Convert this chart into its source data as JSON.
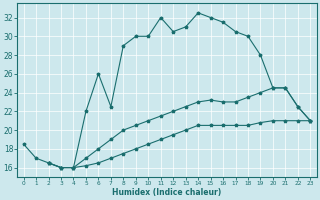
{
  "xlabel": "Humidex (Indice chaleur)",
  "bg_color": "#cde8ed",
  "grid_color": "#ffffff",
  "line_color": "#1a6e6e",
  "xlim": [
    -0.5,
    23.5
  ],
  "ylim": [
    15.0,
    33.5
  ],
  "yticks": [
    16,
    18,
    20,
    22,
    24,
    26,
    28,
    30,
    32
  ],
  "xticks": [
    0,
    1,
    2,
    3,
    4,
    5,
    6,
    7,
    8,
    9,
    10,
    11,
    12,
    13,
    14,
    15,
    16,
    17,
    18,
    19,
    20,
    21,
    22,
    23
  ],
  "series": [
    {
      "x": [
        0,
        1,
        2,
        3,
        4,
        5,
        6,
        7,
        8,
        9,
        10,
        11,
        12,
        13,
        14,
        15,
        16,
        17,
        18,
        19,
        20,
        21,
        22,
        23
      ],
      "y": [
        18.5,
        17.0,
        16.5,
        16.0,
        16.0,
        22.0,
        26.0,
        22.5,
        29.0,
        30.0,
        30.0,
        32.0,
        30.5,
        31.0,
        32.5,
        32.0,
        31.5,
        30.5,
        30.0,
        28.0,
        24.5,
        24.5,
        22.5,
        21.0
      ]
    },
    {
      "x": [
        2,
        3,
        4,
        5,
        6,
        7,
        8,
        9,
        10,
        11,
        12,
        13,
        14,
        15,
        16,
        17,
        18,
        19,
        20,
        21,
        22,
        23
      ],
      "y": [
        16.5,
        16.0,
        16.0,
        17.0,
        18.0,
        19.0,
        20.0,
        20.5,
        21.0,
        21.5,
        22.0,
        22.5,
        23.0,
        23.2,
        23.0,
        23.0,
        23.5,
        24.0,
        24.5,
        24.5,
        22.5,
        21.0
      ]
    },
    {
      "x": [
        2,
        3,
        4,
        5,
        6,
        7,
        8,
        9,
        10,
        11,
        12,
        13,
        14,
        15,
        16,
        17,
        18,
        19,
        20,
        21,
        22,
        23
      ],
      "y": [
        16.5,
        16.0,
        16.0,
        16.2,
        16.5,
        17.0,
        17.5,
        18.0,
        18.5,
        19.0,
        19.5,
        20.0,
        20.5,
        20.5,
        20.5,
        20.5,
        20.5,
        20.8,
        21.0,
        21.0,
        21.0,
        21.0
      ]
    }
  ]
}
